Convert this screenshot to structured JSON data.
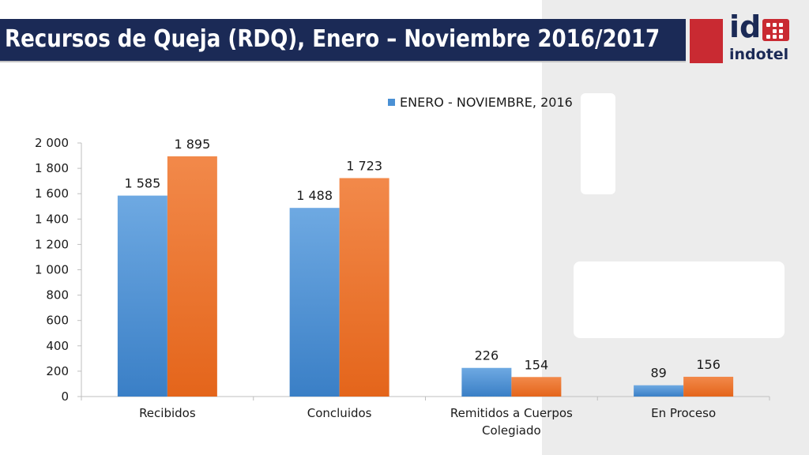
{
  "slide": {
    "title": "Recursos de Queja (RDQ), Enero – Noviembre 2016/2017",
    "logo_text": "id",
    "logo_name": "indotel"
  },
  "chart_data": {
    "type": "bar",
    "categories": [
      "Recibidos",
      "Concluidos",
      "Remitidos a Cuerpos Colegiado",
      "En Proceso"
    ],
    "series": [
      {
        "name": "ENERO - NOVIEMBRE, 2016",
        "values": [
          1585,
          1488,
          226,
          89
        ],
        "labels": [
          "1 585",
          "1 488",
          "226",
          "89"
        ],
        "color": "#4a90d4"
      },
      {
        "name": "",
        "values": [
          1895,
          1723,
          154,
          156
        ],
        "labels": [
          "1 895",
          "1 723",
          "154",
          "156"
        ],
        "color": "#ee7027"
      }
    ],
    "ylim": [
      0,
      2000
    ],
    "yticks": [
      0,
      200,
      400,
      600,
      800,
      1000,
      1200,
      1400,
      1600,
      1800,
      2000
    ],
    "ytick_labels": [
      "0",
      "200",
      "400",
      "600",
      "800",
      "1 000",
      "1 200",
      "1 400",
      "1 600",
      "1 800",
      "2 000"
    ],
    "grid": false,
    "legend": "top"
  }
}
